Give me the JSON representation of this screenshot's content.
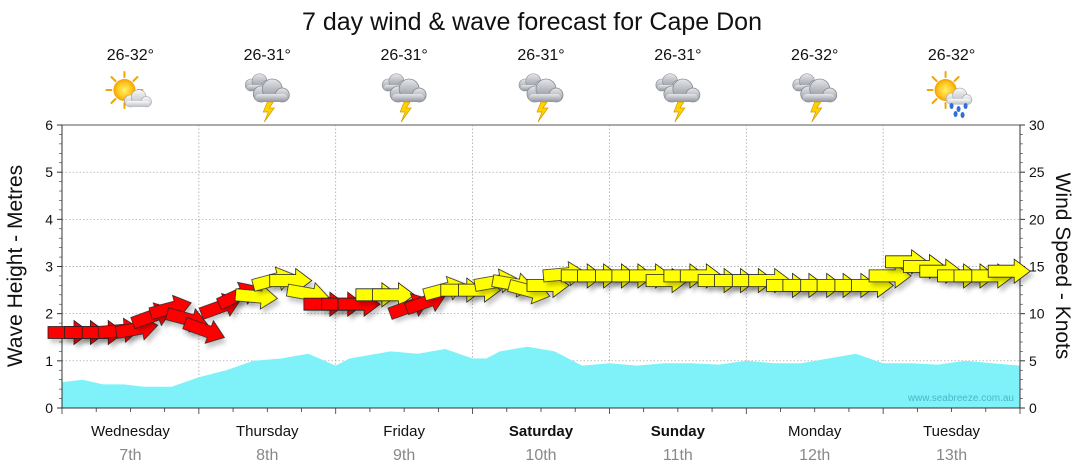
{
  "chart_data": {
    "type": "area",
    "title": "7 day wind & wave forecast for Cape Don",
    "ylabel_left": "Wave Height - Metres",
    "ylabel_right": "Wind Speed - Knots",
    "ylim_left": [
      0,
      6
    ],
    "ylim_right": [
      0,
      30
    ],
    "yticks_left": [
      "0",
      "1",
      "2",
      "3",
      "4",
      "5",
      "6"
    ],
    "yticks_right": [
      "0",
      "5",
      "10",
      "15",
      "20",
      "25",
      "30"
    ],
    "watermark": "www.seabreeze.com.au",
    "days": [
      {
        "name": "Wednesday",
        "date": "7th",
        "temp": "26-32°",
        "icon": "partly-cloudy-sun-icon",
        "weekend": false
      },
      {
        "name": "Thursday",
        "date": "8th",
        "temp": "26-31°",
        "icon": "storm-cloud-icon",
        "weekend": false
      },
      {
        "name": "Friday",
        "date": "9th",
        "temp": "26-31°",
        "icon": "storm-cloud-icon",
        "weekend": false
      },
      {
        "name": "Saturday",
        "date": "10th",
        "temp": "26-31°",
        "icon": "storm-cloud-icon",
        "weekend": true
      },
      {
        "name": "Sunday",
        "date": "11th",
        "temp": "26-31°",
        "icon": "storm-cloud-icon",
        "weekend": true
      },
      {
        "name": "Monday",
        "date": "12th",
        "temp": "26-32°",
        "icon": "storm-cloud-icon",
        "weekend": false
      },
      {
        "name": "Tuesday",
        "date": "13th",
        "temp": "26-32°",
        "icon": "sun-rain-icon",
        "weekend": false
      }
    ],
    "x_range_days": [
      0,
      7
    ],
    "wave_series": {
      "name": "Wave Height",
      "unit": "m",
      "color": "#7ef2f8",
      "x_days": [
        0.0,
        0.15,
        0.3,
        0.45,
        0.6,
        0.8,
        1.0,
        1.2,
        1.4,
        1.6,
        1.8,
        2.0,
        2.1,
        2.2,
        2.4,
        2.6,
        2.8,
        3.0,
        3.1,
        3.2,
        3.4,
        3.6,
        3.8,
        4.0,
        4.2,
        4.4,
        4.6,
        4.8,
        5.0,
        5.2,
        5.4,
        5.6,
        5.8,
        6.0,
        6.2,
        6.4,
        6.6,
        6.8,
        7.0
      ],
      "values": [
        0.55,
        0.6,
        0.5,
        0.5,
        0.45,
        0.45,
        0.65,
        0.8,
        1.0,
        1.05,
        1.15,
        0.9,
        1.05,
        1.1,
        1.2,
        1.15,
        1.25,
        1.05,
        1.05,
        1.2,
        1.3,
        1.2,
        0.9,
        0.95,
        0.9,
        0.95,
        0.95,
        0.92,
        1.0,
        0.95,
        0.95,
        1.05,
        1.15,
        0.95,
        0.95,
        0.92,
        1.0,
        0.95,
        0.9
      ]
    },
    "wind_series": {
      "name": "Wind Speed",
      "unit": "kn",
      "colors": {
        "strong": "#ff0000",
        "moderate": "#ffff00"
      },
      "points": [
        {
          "x": 0.0,
          "y": 8,
          "dir": 0,
          "c": "strong"
        },
        {
          "x": 0.12,
          "y": 8,
          "dir": 0,
          "c": "strong"
        },
        {
          "x": 0.25,
          "y": 8,
          "dir": 0,
          "c": "strong"
        },
        {
          "x": 0.37,
          "y": 8,
          "dir": -5,
          "c": "strong"
        },
        {
          "x": 0.5,
          "y": 8,
          "dir": -10,
          "c": "strong"
        },
        {
          "x": 0.62,
          "y": 9,
          "dir": -20,
          "c": "strong"
        },
        {
          "x": 0.75,
          "y": 10,
          "dir": -15,
          "c": "strong"
        },
        {
          "x": 0.87,
          "y": 10,
          "dir": 15,
          "c": "strong"
        },
        {
          "x": 1.0,
          "y": 9,
          "dir": 20,
          "c": "strong"
        },
        {
          "x": 1.12,
          "y": 10,
          "dir": -20,
          "c": "strong"
        },
        {
          "x": 1.25,
          "y": 11,
          "dir": -25,
          "c": "strong"
        },
        {
          "x": 1.37,
          "y": 12,
          "dir": 5,
          "c": "moderate"
        },
        {
          "x": 1.5,
          "y": 13,
          "dir": -15,
          "c": "moderate"
        },
        {
          "x": 1.62,
          "y": 13.5,
          "dir": 0,
          "c": "moderate"
        },
        {
          "x": 1.75,
          "y": 12.5,
          "dir": 10,
          "c": "moderate"
        },
        {
          "x": 1.87,
          "y": 11,
          "dir": 0,
          "c": "strong"
        },
        {
          "x": 2.0,
          "y": 11,
          "dir": 0,
          "c": "strong"
        },
        {
          "x": 2.12,
          "y": 11,
          "dir": 0,
          "c": "strong"
        },
        {
          "x": 2.25,
          "y": 12,
          "dir": 0,
          "c": "moderate"
        },
        {
          "x": 2.37,
          "y": 12,
          "dir": 0,
          "c": "moderate"
        },
        {
          "x": 2.5,
          "y": 10,
          "dir": -20,
          "c": "strong"
        },
        {
          "x": 2.62,
          "y": 10.5,
          "dir": -20,
          "c": "strong"
        },
        {
          "x": 2.75,
          "y": 12,
          "dir": -15,
          "c": "moderate"
        },
        {
          "x": 2.87,
          "y": 12.5,
          "dir": 0,
          "c": "moderate"
        },
        {
          "x": 3.0,
          "y": 12.5,
          "dir": 0,
          "c": "moderate"
        },
        {
          "x": 3.12,
          "y": 13,
          "dir": -10,
          "c": "moderate"
        },
        {
          "x": 3.25,
          "y": 13.5,
          "dir": 10,
          "c": "moderate"
        },
        {
          "x": 3.37,
          "y": 13,
          "dir": 15,
          "c": "moderate"
        },
        {
          "x": 3.5,
          "y": 13,
          "dir": 0,
          "c": "moderate"
        },
        {
          "x": 3.62,
          "y": 14,
          "dir": -5,
          "c": "moderate"
        },
        {
          "x": 3.75,
          "y": 14,
          "dir": 0,
          "c": "moderate"
        },
        {
          "x": 3.87,
          "y": 14,
          "dir": 0,
          "c": "moderate"
        },
        {
          "x": 4.0,
          "y": 14,
          "dir": 0,
          "c": "moderate"
        },
        {
          "x": 4.12,
          "y": 14,
          "dir": 0,
          "c": "moderate"
        },
        {
          "x": 4.25,
          "y": 14,
          "dir": 0,
          "c": "moderate"
        },
        {
          "x": 4.37,
          "y": 13.5,
          "dir": 0,
          "c": "moderate"
        },
        {
          "x": 4.5,
          "y": 14,
          "dir": 0,
          "c": "moderate"
        },
        {
          "x": 4.62,
          "y": 14,
          "dir": 0,
          "c": "moderate"
        },
        {
          "x": 4.75,
          "y": 13.5,
          "dir": 0,
          "c": "moderate"
        },
        {
          "x": 4.87,
          "y": 13.5,
          "dir": 0,
          "c": "moderate"
        },
        {
          "x": 5.0,
          "y": 13.5,
          "dir": 0,
          "c": "moderate"
        },
        {
          "x": 5.12,
          "y": 13.5,
          "dir": 0,
          "c": "moderate"
        },
        {
          "x": 5.25,
          "y": 13,
          "dir": 0,
          "c": "moderate"
        },
        {
          "x": 5.37,
          "y": 13,
          "dir": 0,
          "c": "moderate"
        },
        {
          "x": 5.5,
          "y": 13,
          "dir": 0,
          "c": "moderate"
        },
        {
          "x": 5.62,
          "y": 13,
          "dir": 0,
          "c": "moderate"
        },
        {
          "x": 5.75,
          "y": 13,
          "dir": 0,
          "c": "moderate"
        },
        {
          "x": 5.87,
          "y": 13,
          "dir": 0,
          "c": "moderate"
        },
        {
          "x": 6.0,
          "y": 14,
          "dir": 0,
          "c": "moderate"
        },
        {
          "x": 6.12,
          "y": 15.5,
          "dir": 0,
          "c": "moderate"
        },
        {
          "x": 6.25,
          "y": 15,
          "dir": 0,
          "c": "moderate"
        },
        {
          "x": 6.37,
          "y": 14.5,
          "dir": 0,
          "c": "moderate"
        },
        {
          "x": 6.5,
          "y": 14,
          "dir": 0,
          "c": "moderate"
        },
        {
          "x": 6.62,
          "y": 14,
          "dir": 0,
          "c": "moderate"
        },
        {
          "x": 6.75,
          "y": 14,
          "dir": 0,
          "c": "moderate"
        },
        {
          "x": 6.87,
          "y": 14.5,
          "dir": 0,
          "c": "moderate"
        }
      ]
    }
  }
}
